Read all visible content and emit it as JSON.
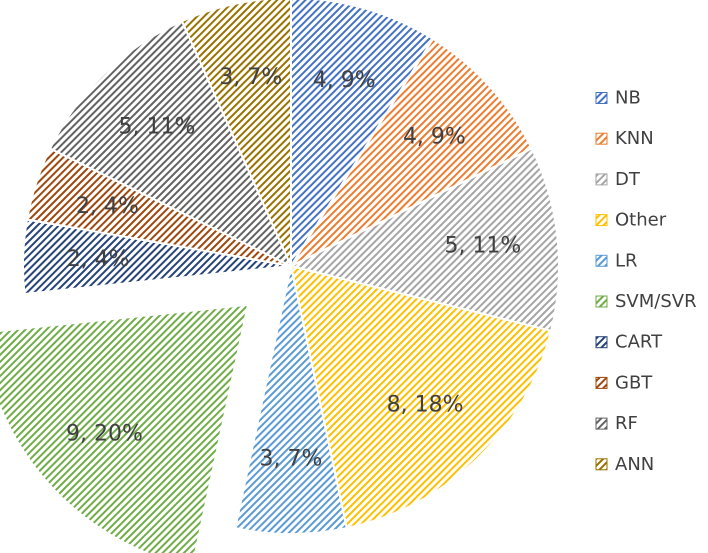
{
  "chart_data": {
    "type": "pie",
    "title": "",
    "legend_position": "right",
    "exploded_slice": "SVM/SVR",
    "slices": [
      {
        "name": "NB",
        "value": 4,
        "percent": 9,
        "label": "4, 9%",
        "color": "#4472c4"
      },
      {
        "name": "KNN",
        "value": 4,
        "percent": 9,
        "label": "4, 9%",
        "color": "#ed7d31"
      },
      {
        "name": "DT",
        "value": 5,
        "percent": 11,
        "label": "5, 11%",
        "color": "#a5a5a5"
      },
      {
        "name": "Other",
        "value": 8,
        "percent": 18,
        "label": "8, 18%",
        "color": "#ffc000"
      },
      {
        "name": "LR",
        "value": 3,
        "percent": 7,
        "label": "3, 7%",
        "color": "#5b9bd5"
      },
      {
        "name": "SVM/SVR",
        "value": 9,
        "percent": 20,
        "label": "9, 20%",
        "color": "#70ad47"
      },
      {
        "name": "CART",
        "value": 2,
        "percent": 4,
        "label": "2, 4%",
        "color": "#264478"
      },
      {
        "name": "GBT",
        "value": 2,
        "percent": 4,
        "label": "2, 4%",
        "color": "#9e480e"
      },
      {
        "name": "RF",
        "value": 5,
        "percent": 11,
        "label": "5, 11%",
        "color": "#636363"
      },
      {
        "name": "ANN",
        "value": 3,
        "percent": 7,
        "label": "3, 7%",
        "color": "#997300"
      }
    ]
  }
}
